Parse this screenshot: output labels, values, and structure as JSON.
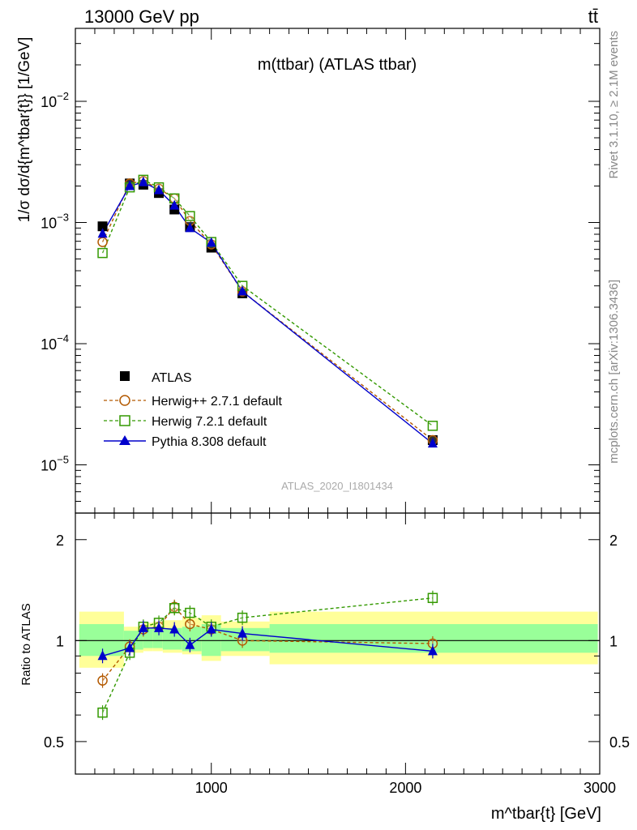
{
  "header": {
    "left": "13000 GeV pp",
    "right": "tt̄"
  },
  "side_labels": {
    "rivet": "Rivet 3.1.10, ≥ 2.1M events",
    "mcplots": "mcplots.cern.ch [arXiv:1306.3436]"
  },
  "colors": {
    "atlas": "#000000",
    "herwigpp": "#b35900",
    "herwig7": "#339900",
    "pythia": "#0000cc",
    "band_inner": "#99ff99",
    "band_outer": "#ffff99"
  },
  "chart_data": [
    {
      "type": "scatter",
      "title": "m(ttbar) (ATLAS ttbar)",
      "ylabel": "1/σ dσ/d{m^tbar{t}} [1/GeV]",
      "xlabel": "m^tbar{t} [GeV]",
      "watermark": "ATLAS_2020_I1801434",
      "xlim": [
        300,
        3000
      ],
      "ylim": [
        4e-06,
        0.04
      ],
      "yscale": "log",
      "yticks": [
        "10^-5",
        "10^-4",
        "10^-3",
        "10^-2"
      ],
      "legend_position": "lower-left",
      "x": [
        440,
        580,
        650,
        730,
        810,
        890,
        1000,
        1160,
        2140
      ],
      "series": [
        {
          "name": "ATLAS",
          "style": "filled-square",
          "values": [
            0.00093,
            0.0021,
            0.00205,
            0.00175,
            0.00128,
            0.00092,
            0.00062,
            0.00026,
            1.6e-05
          ]
        },
        {
          "name": "Herwig++ 2.7.1 default",
          "style": "open-circle-dashed",
          "values": [
            0.00069,
            0.0021,
            0.0022,
            0.0019,
            0.00158,
            0.00103,
            0.00066,
            0.00027,
            1.6e-05
          ]
        },
        {
          "name": "Herwig 7.2.1 default",
          "style": "open-square-dashed",
          "values": [
            0.00056,
            0.00195,
            0.00225,
            0.00195,
            0.00158,
            0.00113,
            0.00069,
            0.0003,
            2.1e-05
          ]
        },
        {
          "name": "Pythia 8.308 default",
          "style": "triangle-solid",
          "values": [
            0.00081,
            0.002,
            0.00215,
            0.00185,
            0.00138,
            0.0009,
            0.00068,
            0.00027,
            1.5e-05
          ]
        }
      ]
    },
    {
      "type": "scatter",
      "ylabel": "Ratio to ATLAS",
      "xlabel": "m^tbar{t} [GeV]",
      "xlim": [
        300,
        3000
      ],
      "ylim": [
        0.4,
        2.4
      ],
      "yscale": "log",
      "yticks": [
        "0.5",
        "1",
        "2"
      ],
      "xticks": [
        "1000",
        "2000",
        "3000"
      ],
      "x": [
        440,
        580,
        650,
        730,
        810,
        890,
        1000,
        1160,
        2140
      ],
      "bands": {
        "edges": [
          300,
          550,
          650,
          700,
          750,
          850,
          950,
          1050,
          1300,
          3000
        ],
        "inner": [
          [
            0.9,
            1.12
          ],
          [
            0.94,
            1.07
          ],
          [
            0.95,
            1.09
          ],
          [
            0.95,
            1.1
          ],
          [
            0.94,
            1.09
          ],
          [
            0.93,
            1.1
          ],
          [
            0.9,
            1.12
          ],
          [
            0.93,
            1.09
          ],
          [
            0.92,
            1.12
          ]
        ],
        "outer": [
          [
            0.83,
            1.22
          ],
          [
            0.92,
            1.1
          ],
          [
            0.93,
            1.13
          ],
          [
            0.93,
            1.14
          ],
          [
            0.92,
            1.15
          ],
          [
            0.91,
            1.17
          ],
          [
            0.87,
            1.19
          ],
          [
            0.9,
            1.14
          ],
          [
            0.85,
            1.22
          ]
        ]
      },
      "series": [
        {
          "name": "Herwig++ 2.7.1 default",
          "values": [
            0.76,
            0.96,
            1.08,
            1.1,
            1.26,
            1.12,
            1.08,
            1.0,
            0.98
          ]
        },
        {
          "name": "Herwig 7.2.1 default",
          "values": [
            0.61,
            0.92,
            1.1,
            1.13,
            1.25,
            1.21,
            1.1,
            1.17,
            1.34
          ]
        },
        {
          "name": "Pythia 8.308 default",
          "values": [
            0.9,
            0.95,
            1.09,
            1.09,
            1.08,
            0.97,
            1.08,
            1.05,
            0.93
          ]
        }
      ]
    }
  ]
}
